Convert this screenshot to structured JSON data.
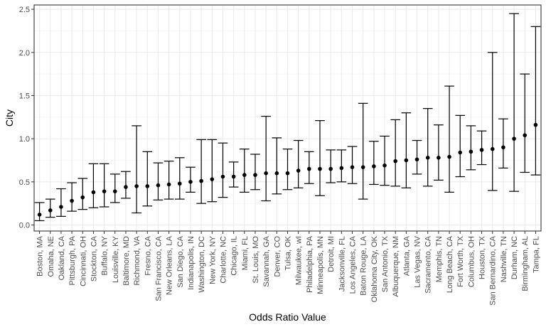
{
  "chart_data": {
    "type": "scatter",
    "title": "",
    "xlabel": "Odds Ratio Value",
    "ylabel": "City",
    "ylim": [
      -0.07,
      2.55
    ],
    "y_ticks": [
      "0.0",
      "0.5",
      "1.0",
      "1.5",
      "2.0",
      "2.5"
    ],
    "grid": true,
    "legend": "none",
    "colors": {
      "panel_border": "#333333",
      "grid_major": "#ebebeb",
      "grid_minor": "#f5f5f5",
      "point": "#000000",
      "errorbar": "#000000"
    },
    "categories": [
      "Boston, MA",
      "Omaha, NE",
      "Oakland, CA",
      "Pittsburgh, PA",
      "Cincinnati, OH",
      "Stockton, CA",
      "Buffalo, NY",
      "Louisville, KY",
      "Baltimore, MD",
      "Richmond, VA",
      "Fresno, CA",
      "San Francisco, CA",
      "New Orleans, LA",
      "San Diego, CA",
      "Indianapolis, IN",
      "Washington, DC",
      "New York, NY",
      "Charlotte, NC",
      "Chicago, IL",
      "Miami, FL",
      "St. Louis, MO",
      "Savannah, GA",
      "Denver, CO",
      "Tulsa, OK",
      "Milwaukee, wI",
      "Philadelphia, PA",
      "Minneapolis, MN",
      "Detroit, MI",
      "Jacksonville, FL",
      "Los Angeles, CA",
      "Baton Rouge, LA",
      "Oklahoma City, OK",
      "San Antonio, TX",
      "Albuquerque, NM",
      "Atlanta, GA",
      "Las Vegas, NV",
      "Sacramento, CA",
      "Memphis, TN",
      "Long Beach, CA",
      "Fort Worth, TX",
      "Columbus, OH",
      "Houston, TX",
      "San Bernardino, CA",
      "Nashville, TN",
      "Durham, NC",
      "Birmingham, AL",
      "Tampa, FL"
    ],
    "estimate": [
      0.12,
      0.17,
      0.21,
      0.28,
      0.32,
      0.38,
      0.39,
      0.39,
      0.44,
      0.45,
      0.45,
      0.46,
      0.47,
      0.48,
      0.5,
      0.51,
      0.53,
      0.56,
      0.56,
      0.58,
      0.58,
      0.6,
      0.6,
      0.6,
      0.63,
      0.65,
      0.65,
      0.65,
      0.66,
      0.67,
      0.67,
      0.68,
      0.69,
      0.74,
      0.75,
      0.76,
      0.78,
      0.78,
      0.79,
      0.84,
      0.85,
      0.87,
      0.88,
      0.9,
      1.0,
      1.04,
      1.16
    ],
    "ci_low": [
      0.05,
      0.09,
      0.1,
      0.16,
      0.18,
      0.2,
      0.21,
      0.26,
      0.31,
      0.14,
      0.22,
      0.29,
      0.3,
      0.3,
      0.38,
      0.25,
      0.27,
      0.32,
      0.44,
      0.38,
      0.41,
      0.28,
      0.36,
      0.41,
      0.43,
      0.48,
      0.34,
      0.49,
      0.5,
      0.48,
      0.3,
      0.47,
      0.46,
      0.45,
      0.43,
      0.59,
      0.45,
      0.52,
      0.38,
      0.56,
      0.64,
      0.7,
      0.4,
      0.66,
      0.39,
      0.61,
      0.58
    ],
    "ci_high": [
      0.26,
      0.3,
      0.42,
      0.49,
      0.54,
      0.71,
      0.71,
      0.59,
      0.62,
      1.15,
      0.85,
      0.72,
      0.74,
      0.78,
      0.67,
      0.99,
      0.99,
      0.95,
      0.73,
      0.88,
      0.82,
      1.26,
      1.01,
      0.88,
      0.98,
      0.85,
      1.21,
      0.87,
      0.87,
      0.91,
      1.41,
      0.97,
      1.03,
      1.22,
      1.3,
      0.98,
      1.35,
      1.16,
      1.61,
      1.27,
      1.15,
      1.09,
      2.0,
      1.23,
      2.45,
      1.75,
      2.3
    ]
  }
}
